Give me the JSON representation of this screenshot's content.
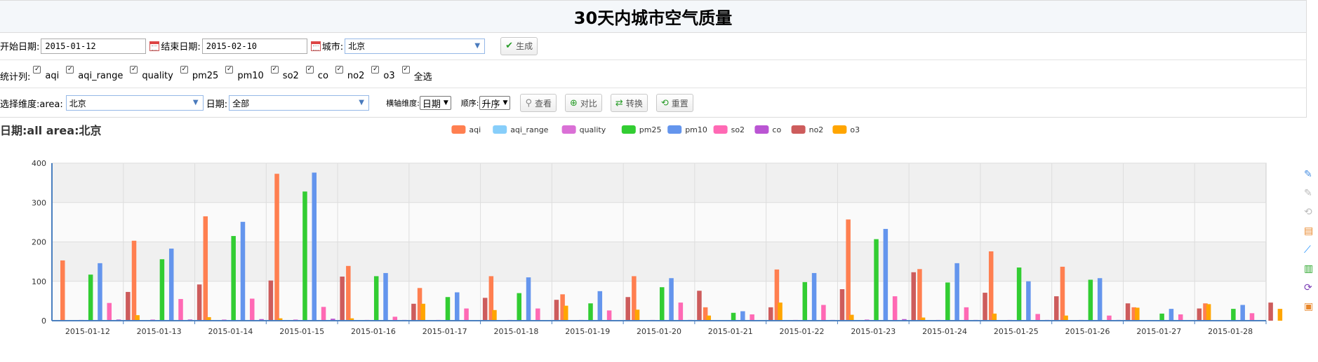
{
  "header": {
    "title": "30天内城市空气质量"
  },
  "filters": {
    "start_label": "开始日期:",
    "start_value": "2015-01-12",
    "end_label": "结束日期:",
    "end_value": "2015-02-10",
    "city_label": "城市:",
    "city_value": "北京",
    "generate_label": "生成"
  },
  "stats": {
    "label": "统计列:",
    "items": [
      {
        "label": "aqi",
        "checked": true
      },
      {
        "label": "aqi_range",
        "checked": true
      },
      {
        "label": "quality",
        "checked": true
      },
      {
        "label": "pm25",
        "checked": true
      },
      {
        "label": "pm10",
        "checked": true
      },
      {
        "label": "so2",
        "checked": true
      },
      {
        "label": "co",
        "checked": true
      },
      {
        "label": "no2",
        "checked": true
      },
      {
        "label": "o3",
        "checked": true
      },
      {
        "label": "全选",
        "checked": true
      }
    ]
  },
  "dims": {
    "label": "选择维度:area:",
    "area_value": "北京",
    "date_label": "日期:",
    "date_value": "全部",
    "axis_label": "横轴维度:",
    "axis_value": "日期",
    "order_label": "顺序:",
    "order_value": "升序",
    "buttons": {
      "view": "查看",
      "compare": "对比",
      "convert": "转换",
      "reset": "重置"
    }
  },
  "toolbox": {
    "icons": [
      {
        "name": "zoom-icon",
        "color": "#4a90e2",
        "glyph": "✎"
      },
      {
        "name": "zoom-reset-icon",
        "color": "#bbbbbb",
        "glyph": "✎"
      },
      {
        "name": "restore-area-icon",
        "color": "#bbbbbb",
        "glyph": "⟲"
      },
      {
        "name": "data-view-icon",
        "color": "#e8872b",
        "glyph": "▤"
      },
      {
        "name": "line-chart-icon",
        "color": "#1e90ff",
        "glyph": "⟋"
      },
      {
        "name": "bar-chart-icon",
        "color": "#2aa52a",
        "glyph": "▥"
      },
      {
        "name": "refresh-icon",
        "color": "#7b3fb5",
        "glyph": "⟳"
      },
      {
        "name": "save-image-icon",
        "color": "#e8872b",
        "glyph": "▣"
      }
    ]
  },
  "chart_data": {
    "type": "bar",
    "title": "日期:all area:北京",
    "ylim": [
      0,
      400
    ],
    "yticks": [
      0,
      100,
      200,
      300,
      400
    ],
    "grid": true,
    "legend_position": "top",
    "categories": [
      "2015-01-12",
      "2015-01-13",
      "2015-01-14",
      "2015-01-15",
      "2015-01-16",
      "2015-01-17",
      "2015-01-18",
      "2015-01-19",
      "2015-01-20",
      "2015-01-21",
      "2015-01-22",
      "2015-01-23",
      "2015-01-24",
      "2015-01-25",
      "2015-01-26",
      "2015-01-27",
      "2015-01-28"
    ],
    "series": [
      {
        "name": "aqi",
        "color": "#ff7f50",
        "values": [
          153,
          203,
          265,
          373,
          139,
          83,
          113,
          67,
          113,
          34,
          130,
          257,
          131,
          176,
          137,
          34,
          44
        ]
      },
      {
        "name": "aqi_range",
        "color": "#87cefa",
        "values": [
          0,
          0,
          0,
          0,
          0,
          0,
          0,
          0,
          0,
          0,
          0,
          0,
          0,
          0,
          0,
          0,
          0
        ]
      },
      {
        "name": "quality",
        "color": "#da70d6",
        "values": [
          2,
          3,
          3,
          3,
          2,
          2,
          2,
          2,
          2,
          1,
          2,
          3,
          2,
          2,
          2,
          1,
          1
        ]
      },
      {
        "name": "pm25",
        "color": "#32cd32",
        "values": [
          117,
          156,
          215,
          328,
          113,
          60,
          70,
          44,
          85,
          20,
          98,
          207,
          97,
          135,
          104,
          18,
          30
        ]
      },
      {
        "name": "pm10",
        "color": "#6495ed",
        "values": [
          146,
          183,
          251,
          376,
          121,
          72,
          110,
          75,
          108,
          24,
          121,
          233,
          146,
          100,
          108,
          30,
          40
        ]
      },
      {
        "name": "so2",
        "color": "#ff69b4",
        "values": [
          45,
          55,
          56,
          35,
          10,
          31,
          31,
          26,
          46,
          16,
          40,
          62,
          34,
          17,
          13,
          16,
          19
        ]
      },
      {
        "name": "co",
        "color": "#ba55d3",
        "values": [
          3,
          3,
          4,
          5,
          2,
          1,
          1,
          1,
          2,
          1,
          2,
          4,
          2,
          2,
          2,
          1,
          1
        ]
      },
      {
        "name": "no2",
        "color": "#cd5c5c",
        "values": [
          73,
          92,
          102,
          112,
          43,
          58,
          53,
          60,
          76,
          34,
          80,
          123,
          71,
          62,
          44,
          31,
          46
        ]
      },
      {
        "name": "o3",
        "color": "#ffa500",
        "values": [
          14,
          9,
          6,
          6,
          43,
          27,
          38,
          28,
          13,
          46,
          15,
          8,
          18,
          13,
          33,
          42,
          30
        ]
      }
    ]
  }
}
